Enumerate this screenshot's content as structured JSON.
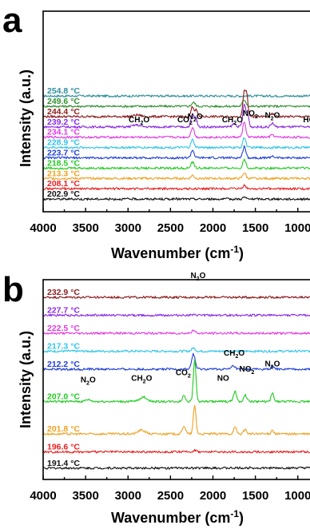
{
  "chart_data": [
    {
      "panel": "a",
      "type": "line",
      "xlabel": "Wavenumber (cm-1)",
      "ylabel": "Intensity (a.u.)",
      "xlim": [
        4000,
        800
      ],
      "xticks": [
        4000,
        3500,
        3000,
        2500,
        2000,
        1500,
        1000
      ],
      "series": [
        {
          "name": "254.8 °C",
          "color": "#2f8f9d",
          "offset": 11,
          "peaks": []
        },
        {
          "name": "249.6 °C",
          "color": "#2f8f2f",
          "offset": 10,
          "peaks": [
            [
              2230,
              0.6,
              30
            ],
            [
              1630,
              1.0,
              30
            ]
          ]
        },
        {
          "name": "244.4 °C",
          "color": "#8b1a1a",
          "offset": 9,
          "peaks": [
            [
              2890,
              0.25,
              60
            ],
            [
              2240,
              1.6,
              25
            ],
            [
              2195,
              1.0,
              20
            ],
            [
              1630,
              3.8,
              25
            ],
            [
              1600,
              2.6,
              20
            ],
            [
              1300,
              0.4,
              25
            ]
          ]
        },
        {
          "name": "239.2 °C",
          "color": "#8a2be2",
          "offset": 8,
          "peaks": [
            [
              2900,
              0.3,
              60
            ],
            [
              2240,
              2.0,
              25
            ],
            [
              2200,
              1.3,
              20
            ],
            [
              1750,
              0.5,
              30
            ],
            [
              1630,
              3.5,
              25
            ],
            [
              1590,
              1.8,
              20
            ],
            [
              1300,
              0.6,
              25
            ]
          ]
        },
        {
          "name": "234.1 °C",
          "color": "#e23be2",
          "offset": 7,
          "peaks": [
            [
              2240,
              1.6,
              25
            ],
            [
              1630,
              2.4,
              25
            ],
            [
              1300,
              0.4,
              25
            ]
          ]
        },
        {
          "name": "228.9 °C",
          "color": "#2ec4e8",
          "offset": 6,
          "peaks": [
            [
              2240,
              1.2,
              25
            ],
            [
              1630,
              1.6,
              25
            ]
          ]
        },
        {
          "name": "223.7 °C",
          "color": "#1f3fd6",
          "offset": 5,
          "peaks": [
            [
              2240,
              1.2,
              25
            ],
            [
              1630,
              1.8,
              25
            ],
            [
              1300,
              0.3,
              25
            ]
          ]
        },
        {
          "name": "218.5 °C",
          "color": "#22cc22",
          "offset": 4,
          "peaks": [
            [
              2240,
              0.9,
              25
            ],
            [
              1630,
              1.4,
              25
            ]
          ]
        },
        {
          "name": "213.3 °C",
          "color": "#f0a020",
          "offset": 3,
          "peaks": [
            [
              2240,
              0.5,
              25
            ],
            [
              1630,
              0.9,
              25
            ]
          ]
        },
        {
          "name": "208.1 °C",
          "color": "#e82020",
          "offset": 2,
          "peaks": [
            [
              1630,
              0.5,
              25
            ]
          ]
        },
        {
          "name": "202.9 °C",
          "color": "#111111",
          "offset": 1,
          "peaks": [
            [
              1630,
              0.3,
              25
            ]
          ]
        }
      ],
      "annotations": [
        {
          "text": "CH2O",
          "x": 2870,
          "row": 8
        },
        {
          "text": "CO2",
          "x": 2330,
          "row": 8
        },
        {
          "text": "N2O",
          "x": 2210,
          "row": 8.3
        },
        {
          "text": "CH2O",
          "x": 1770,
          "row": 8
        },
        {
          "text": "NO2",
          "x": 1560,
          "row": 8.6
        },
        {
          "text": "N2O",
          "x": 1300,
          "row": 8.4
        },
        {
          "text": "HC",
          "x": 870,
          "row": 8
        }
      ]
    },
    {
      "panel": "b",
      "type": "line",
      "xlabel": "Wavenumber (cm-1)",
      "ylabel": "Intensity (a.u.)",
      "xlim": [
        4000,
        800
      ],
      "xticks": [
        4000,
        3500,
        3000,
        2500,
        2000,
        1500,
        1000
      ],
      "series": [
        {
          "name": "232.9 °C",
          "color": "#8b1a1a",
          "offset": 10,
          "peaks": []
        },
        {
          "name": "227.7 °C",
          "color": "#8a2be2",
          "offset": 9,
          "peaks": []
        },
        {
          "name": "222.5 °C",
          "color": "#e23be2",
          "offset": 8,
          "peaks": [
            [
              2230,
              0.4,
              30
            ]
          ]
        },
        {
          "name": "217.3 °C",
          "color": "#2ec4e8",
          "offset": 7,
          "peaks": [
            [
              2230,
              0.5,
              30
            ]
          ]
        },
        {
          "name": "212.2 °C",
          "color": "#1f3fd6",
          "offset": 6,
          "peaks": [
            [
              2230,
              2.4,
              28
            ],
            [
              1760,
              0.5,
              30
            ],
            [
              1300,
              0.4,
              25
            ]
          ]
        },
        {
          "name": "207.0 °C",
          "color": "#22cc22",
          "offset": 4.2,
          "peaks": [
            [
              3470,
              0.3,
              40
            ],
            [
              2820,
              0.7,
              60
            ],
            [
              2340,
              1.0,
              25
            ],
            [
              2215,
              6.5,
              22
            ],
            [
              1740,
              1.6,
              25
            ],
            [
              1620,
              1.0,
              25
            ],
            [
              1300,
              1.3,
              22
            ]
          ]
        },
        {
          "name": "201.8 °C",
          "color": "#f0a020",
          "offset": 2.4,
          "peaks": [
            [
              2840,
              0.6,
              60
            ],
            [
              2340,
              1.3,
              25
            ],
            [
              2215,
              4.4,
              22
            ],
            [
              1740,
              1.0,
              25
            ],
            [
              1620,
              0.7,
              25
            ],
            [
              1300,
              0.6,
              22
            ]
          ]
        },
        {
          "name": "196.6 °C",
          "color": "#e82020",
          "offset": 1.4,
          "peaks": [
            [
              2215,
              0.3,
              25
            ]
          ]
        },
        {
          "name": "191.4 °C",
          "color": "#111111",
          "offset": 0.5,
          "peaks": [
            [
              1550,
              0.2,
              20
            ]
          ]
        }
      ],
      "annotations": [
        {
          "text": "N2O",
          "x": 3470,
          "row": 5.0
        },
        {
          "text": "CH2O",
          "x": 2840,
          "row": 5.1
        },
        {
          "text": "CO2",
          "x": 2350,
          "row": 5.4
        },
        {
          "text": "N2O",
          "x": 2175,
          "row": 10.8
        },
        {
          "text": "NO",
          "x": 1880,
          "row": 5.1
        },
        {
          "text": "CH2O",
          "x": 1750,
          "row": 6.5
        },
        {
          "text": "NO2",
          "x": 1600,
          "row": 5.6
        },
        {
          "text": "N2O",
          "x": 1300,
          "row": 5.9
        }
      ]
    }
  ]
}
